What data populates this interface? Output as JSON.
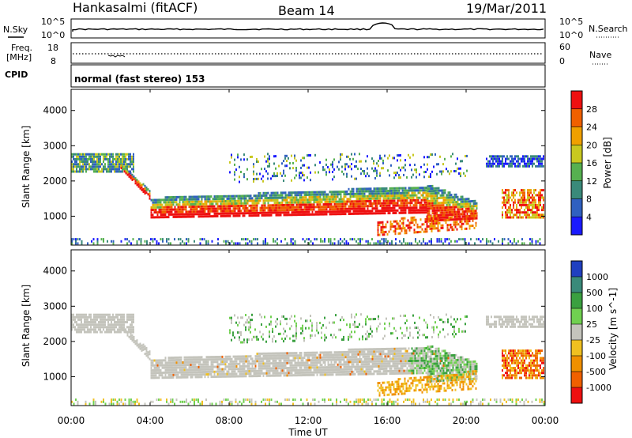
{
  "header": {
    "station": "Hankasalmi (fitACF)",
    "beam": "Beam 14",
    "date": "19/Mar/2011"
  },
  "params": {
    "nsky_label": "N.Sky",
    "nsky_ticks": [
      "10^5",
      "10^0"
    ],
    "nsearch_label": "N.Search",
    "nsearch_ticks": [
      "10^5",
      "10^0"
    ],
    "freq_label": "Freq.",
    "freq_unit": "[MHz]",
    "freq_ticks": [
      "18",
      "8"
    ],
    "nave_label": "Nave",
    "nave_ticks": [
      "60",
      "0"
    ],
    "cpid_label": "CPID",
    "cpid_text": "normal (fast stereo) 153"
  },
  "x_ticks": [
    "00:00",
    "04:00",
    "08:00",
    "12:00",
    "16:00",
    "20:00",
    "00:00"
  ],
  "x_label": "Time UT",
  "chart_data": [
    {
      "type": "heatmap",
      "name": "power",
      "ylabel": "Slant Range [km]",
      "y_ticks": [
        "1000",
        "2000",
        "3000",
        "4000"
      ],
      "xlim_hours": [
        0,
        24
      ],
      "ylim_km": [
        180,
        4600
      ],
      "colorbar": {
        "label": "Power [dB]",
        "ticks": [
          "4",
          "8",
          "12",
          "16",
          "20",
          "24",
          "28"
        ],
        "colors": [
          "#1a1aff",
          "#3060c0",
          "#3a8a7a",
          "#56b050",
          "#c8c820",
          "#f0a000",
          "#f06000",
          "#ee1010"
        ]
      },
      "regions": [
        {
          "desc": "upper band",
          "x_hours": [
            0,
            3
          ],
          "range_km": [
            2300,
            2800
          ],
          "level": "low-mid"
        },
        {
          "desc": "main descending echo",
          "x_hours": [
            3,
            21
          ],
          "range_km": [
            900,
            1700
          ],
          "level": "high"
        },
        {
          "desc": "late band",
          "x_hours": [
            21.5,
            24
          ],
          "range_km": [
            1000,
            1800
          ],
          "level": "high"
        }
      ]
    },
    {
      "type": "heatmap",
      "name": "velocity",
      "ylabel": "Slant Range [km]",
      "y_ticks": [
        "1000",
        "2000",
        "3000",
        "4000"
      ],
      "xlim_hours": [
        0,
        24
      ],
      "ylim_km": [
        180,
        4600
      ],
      "colorbar": {
        "label": "Velocity [m s^-1]",
        "ticks": [
          "1000",
          "500",
          "100",
          "25",
          "-25",
          "-100",
          "-500",
          "-1000"
        ],
        "colors": [
          "#2040c0",
          "#3a8a7a",
          "#3aa040",
          "#70d050",
          "#c4c4bc",
          "#f0c020",
          "#f09000",
          "#f06000",
          "#ee1010"
        ]
      }
    }
  ],
  "colors": {
    "power_high": "#ee1010",
    "velocity_ground": "#c4c4bc"
  }
}
